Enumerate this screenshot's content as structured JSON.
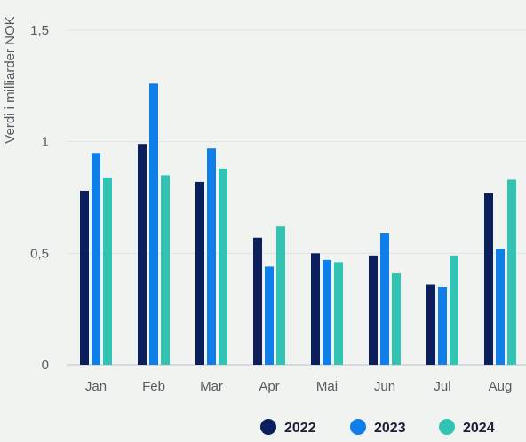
{
  "chart_data": {
    "type": "bar",
    "ylabel": "Verdi i milliarder NOK",
    "ylim": [
      0,
      1.5
    ],
    "yticks": [
      0,
      0.5,
      1,
      1.5
    ],
    "ytick_labels": [
      "0",
      "0,5",
      "1",
      "1,5"
    ],
    "categories": [
      "Jan",
      "Feb",
      "Mar",
      "Apr",
      "Mai",
      "Jun",
      "Jul",
      "Aug"
    ],
    "series": [
      {
        "name": "2022",
        "color": "#0b1f5c",
        "values": [
          0.78,
          0.99,
          0.82,
          0.57,
          0.5,
          0.49,
          0.36,
          0.77
        ]
      },
      {
        "name": "2023",
        "color": "#0f7ee8",
        "values": [
          0.95,
          1.26,
          0.97,
          0.44,
          0.47,
          0.59,
          0.35,
          0.52
        ]
      },
      {
        "name": "2024",
        "color": "#32c4b3",
        "values": [
          0.84,
          0.85,
          0.88,
          0.62,
          0.46,
          0.41,
          0.49,
          0.83
        ]
      }
    ],
    "grid": true,
    "legend_position": "bottom-right"
  }
}
